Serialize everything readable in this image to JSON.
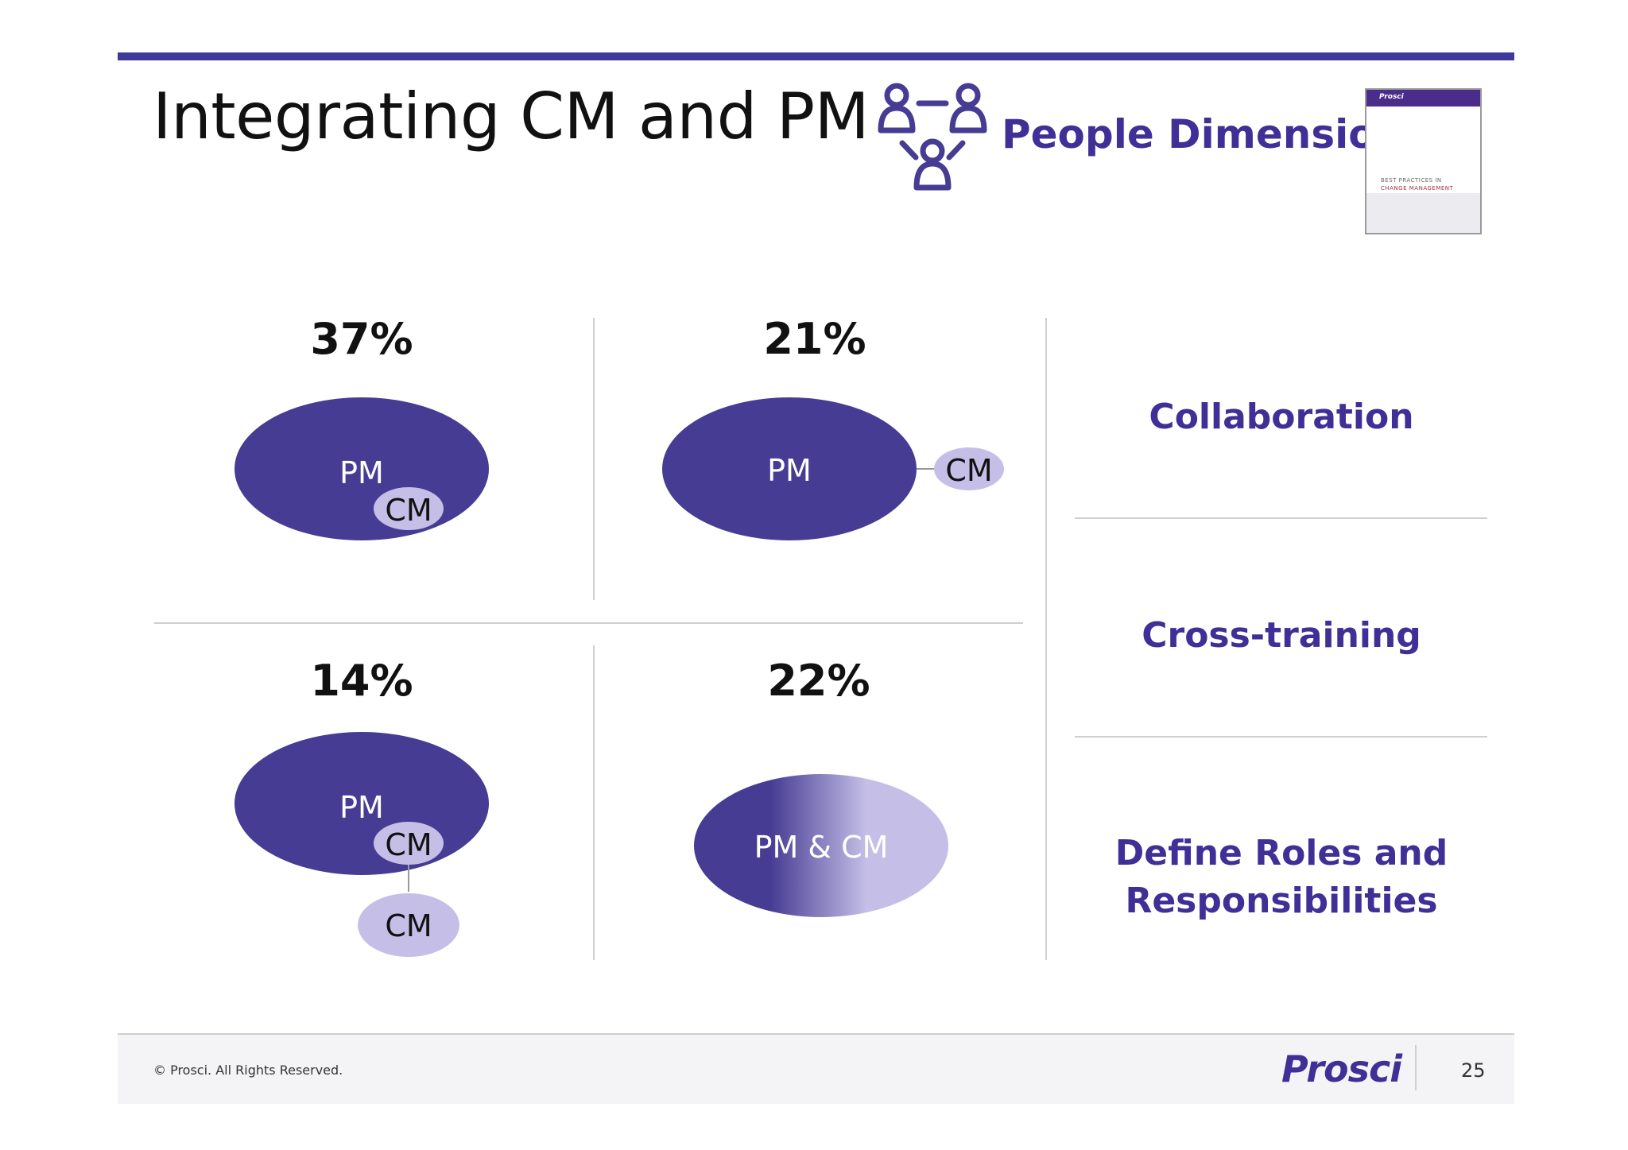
{
  "title": "Integrating CM and PM",
  "people_dimension": {
    "label": "People Dimension",
    "icon": "people-network-icon"
  },
  "report": {
    "brand": "Prosci",
    "title_line1": "BEST PRACTICES IN",
    "title_line2": "CHANGE MANAGEMENT"
  },
  "quadrants": [
    {
      "percent": "37%",
      "shapes": {
        "pm": "PM",
        "cm": "CM"
      }
    },
    {
      "percent": "21%",
      "shapes": {
        "pm": "PM",
        "cm": "CM"
      }
    },
    {
      "percent": "14%",
      "shapes": {
        "pm": "PM",
        "cm_inner": "CM",
        "cm_outer": "CM"
      }
    },
    {
      "percent": "22%",
      "shapes": {
        "combined": "PM & CM"
      }
    }
  ],
  "right_panel": {
    "items": [
      {
        "label": "Collaboration"
      },
      {
        "label": "Cross-training"
      },
      {
        "label_line1": "Define Roles and",
        "label_line2": "Responsibilities"
      }
    ]
  },
  "footer": {
    "copyright": "© Prosci. All Rights Reserved.",
    "logo": "Prosci",
    "page_number": "25"
  },
  "colors": {
    "pm_fill": "#463c93",
    "cm_fill": "#c5bfe8",
    "accent": "#3f2f96",
    "rule": "#3d3a9b"
  }
}
